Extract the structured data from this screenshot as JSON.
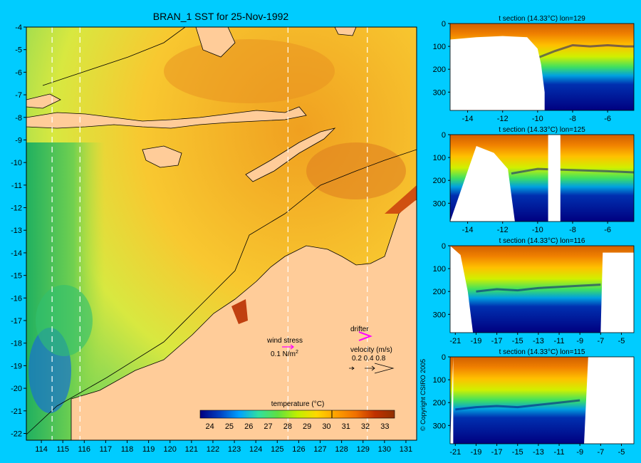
{
  "title": "BRAN_1 SST for 25-Nov-1992",
  "map": {
    "lon_ticks": [
      "114",
      "115",
      "116",
      "117",
      "118",
      "119",
      "120",
      "121",
      "122",
      "123",
      "124",
      "125",
      "126",
      "127",
      "128",
      "129",
      "130",
      "131"
    ],
    "lat_ticks": [
      "-4",
      "-5",
      "-6",
      "-7",
      "-8",
      "-9",
      "-10",
      "-11",
      "-12",
      "-13",
      "-14",
      "-15",
      "-16",
      "-17",
      "-18",
      "-19",
      "-20",
      "-21",
      "-22"
    ],
    "lon_range": [
      113.3,
      131.5
    ],
    "lat_range": [
      -22.3,
      -4
    ],
    "section_lons": [
      114.5,
      115.8,
      125.5,
      129.2
    ],
    "colors": {
      "ocean_warm": "#f0a020",
      "ocean_cool": "#90e050",
      "land": "#ffcc99"
    }
  },
  "legend": {
    "wind_stress_label": "wind stress",
    "wind_stress_scale": "0.1 N/m",
    "wind_stress_sup": "2",
    "drifter_label": "drifter",
    "velocity_label": "velocity (m/s)",
    "velocity_values": "0.2 0.4 0.8"
  },
  "colorbar": {
    "title": "temperature (°C)",
    "ticks": [
      "24",
      "25",
      "26",
      "27",
      "28",
      "29",
      "30",
      "31",
      "32",
      "33"
    ],
    "range": [
      23.5,
      33.5
    ],
    "colors": [
      "#000080",
      "#0040c0",
      "#00a0ff",
      "#30e0a0",
      "#60e040",
      "#c0f000",
      "#ffd800",
      "#ffa000",
      "#f07000",
      "#c03000",
      "#903000"
    ]
  },
  "copyright": "© Copyright CSIRO 2005",
  "chart_data": [
    {
      "type": "heatmap",
      "title": "t section (14.33°C) lon=129",
      "x_ticks": [
        "-14",
        "-12",
        "-10",
        "-8",
        "-6"
      ],
      "xlim": [
        -15,
        -4.5
      ],
      "y_ticks": [
        "0",
        "100",
        "200",
        "300"
      ],
      "ylim": [
        0,
        380
      ],
      "land_edge": [
        [
          -15,
          70
        ],
        [
          -13.5,
          60
        ],
        [
          -12,
          55
        ],
        [
          -10.6,
          60
        ],
        [
          -10,
          110
        ],
        [
          -9.8,
          180
        ],
        [
          -9.6,
          300
        ],
        [
          -9.6,
          380
        ]
      ],
      "thermocline_depth": [
        [
          -10,
          150
        ],
        [
          -9,
          120
        ],
        [
          -8,
          95
        ],
        [
          -7,
          100
        ],
        [
          -6,
          95
        ],
        [
          -5,
          100
        ],
        [
          -4.5,
          100
        ]
      ]
    },
    {
      "type": "heatmap",
      "title": "t section (14.33°C) lon=125",
      "x_ticks": [
        "-14",
        "-12",
        "-10",
        "-8",
        "-6"
      ],
      "xlim": [
        -15,
        -4.5
      ],
      "y_ticks": [
        "0",
        "100",
        "200",
        "300"
      ],
      "ylim": [
        0,
        380
      ],
      "land_edge": [
        [
          -15,
          380
        ],
        [
          -13.5,
          50
        ],
        [
          -12.5,
          80
        ],
        [
          -11.7,
          150
        ],
        [
          -11.3,
          380
        ]
      ],
      "land_gap": [
        -9.4,
        -8.7
      ],
      "thermocline_depth": [
        [
          -11.5,
          170
        ],
        [
          -10,
          150
        ],
        [
          -8,
          155
        ],
        [
          -6,
          160
        ],
        [
          -4.5,
          165
        ]
      ]
    },
    {
      "type": "heatmap",
      "title": "t section (14.33°C) lon=116",
      "x_ticks": [
        "-21",
        "-19",
        "-17",
        "-15",
        "-13",
        "-11",
        "-9",
        "-7",
        "-5"
      ],
      "xlim": [
        -21.5,
        -3.8
      ],
      "y_ticks": [
        "0",
        "100",
        "200",
        "300"
      ],
      "ylim": [
        0,
        380
      ],
      "land_edge": [
        [
          -21.5,
          0
        ],
        [
          -20.5,
          40
        ],
        [
          -19.8,
          200
        ],
        [
          -19.3,
          380
        ]
      ],
      "land_right": [
        [
          -7,
          380
        ],
        [
          -6.8,
          30
        ],
        [
          -3.8,
          30
        ]
      ],
      "thermocline_depth": [
        [
          -19,
          200
        ],
        [
          -17,
          190
        ],
        [
          -15,
          195
        ],
        [
          -13,
          185
        ],
        [
          -11,
          180
        ],
        [
          -9,
          175
        ],
        [
          -7,
          170
        ]
      ]
    },
    {
      "type": "heatmap",
      "title": "t section (14.33°C) lon=115",
      "x_ticks": [
        "-21",
        "-19",
        "-17",
        "-15",
        "-13",
        "-11",
        "-9",
        "-7",
        "-5"
      ],
      "xlim": [
        -21.5,
        -3.8
      ],
      "y_ticks": [
        "0",
        "100",
        "200",
        "300"
      ],
      "ylim": [
        0,
        380
      ],
      "land_edge": [
        [
          -21.5,
          380
        ],
        [
          -21.2,
          0
        ]
      ],
      "land_right": [
        [
          -8.6,
          380
        ],
        [
          -8.2,
          0
        ],
        [
          -3.8,
          0
        ]
      ],
      "thermocline_depth": [
        [
          -21,
          230
        ],
        [
          -19,
          220
        ],
        [
          -17,
          215
        ],
        [
          -15,
          220
        ],
        [
          -13,
          210
        ],
        [
          -11,
          200
        ],
        [
          -9,
          190
        ]
      ]
    }
  ]
}
